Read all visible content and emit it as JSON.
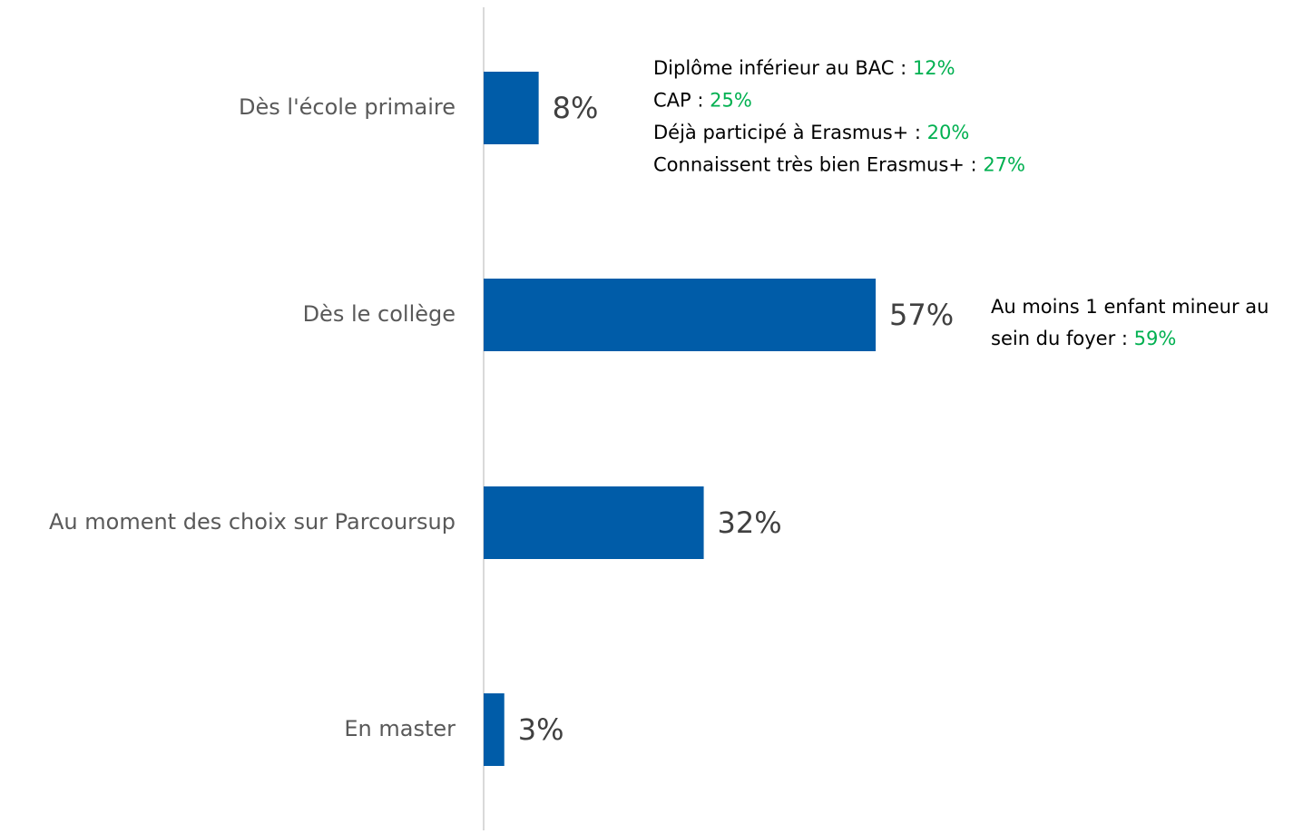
{
  "chart_data": {
    "type": "bar",
    "orientation": "horizontal",
    "categories": [
      "Dès l'école primaire",
      "Dès le collège",
      "Au moment des choix sur Parcoursup",
      "En master"
    ],
    "values": [
      8,
      57,
      32,
      3
    ],
    "value_labels": [
      "8%",
      "57%",
      "32%",
      "3%"
    ],
    "color": "#005ca8",
    "annotations": [
      {
        "lines": [
          {
            "text": "Diplôme inférieur au BAC :",
            "value": 12,
            "value_label": "12%"
          },
          {
            "text": "CAP :",
            "value": 25,
            "value_label": "25%"
          },
          {
            "text": "Déjà participé à Erasmus+ :",
            "value": 20,
            "value_label": "20%"
          },
          {
            "text": "Connaissent très bien Erasmus+ :",
            "value": 27,
            "value_label": "27%"
          }
        ]
      },
      {
        "lines": [
          {
            "text": "Au moins 1 enfant mineur au"
          },
          {
            "text": "sein du foyer :",
            "value": 59,
            "value_label": "59%"
          }
        ]
      }
    ]
  }
}
